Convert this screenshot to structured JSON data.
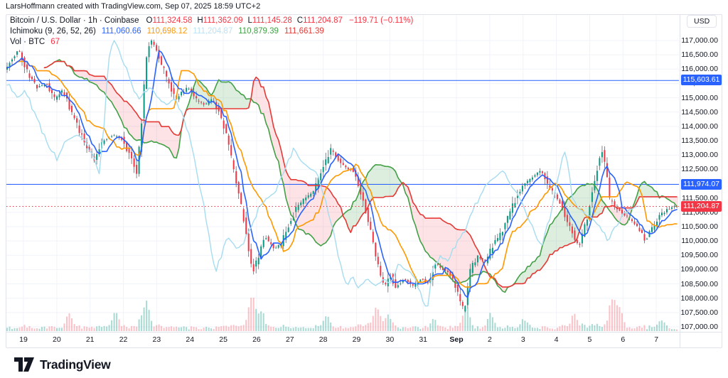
{
  "attribution": "LarsHoffmann created with TradingView.com, Sep 07, 2025 18:59 UTC+2",
  "legend": {
    "symbol_title": "Bitcoin / U.S. Dollar · 1h · Coinbase",
    "ohlc_color": "#F23645",
    "ohlc": [
      {
        "label": "O",
        "value": "111,324.58"
      },
      {
        "label": "H",
        "value": "111,362.09"
      },
      {
        "label": "L",
        "value": "111,145.28"
      },
      {
        "label": "C",
        "value": "111,204.87"
      }
    ],
    "change": "−119.71 (−0.11%)",
    "indicator": {
      "name": "Ichimoku (9, 26, 52, 26)",
      "values": [
        {
          "name": "conversion",
          "value": "111,060.66",
          "color": "#2962FF"
        },
        {
          "name": "base",
          "value": "110,698.12",
          "color": "#FF9800"
        },
        {
          "name": "lagging",
          "value": "111,204.87",
          "color": "#B9E2F4"
        },
        {
          "name": "lead-a",
          "value": "110,879.39",
          "color": "#43A047"
        },
        {
          "name": "lead-b",
          "value": "111,661.39",
          "color": "#E53935"
        }
      ]
    },
    "volume": {
      "name": "Vol · BTC",
      "value": "67",
      "color": "#F23645"
    }
  },
  "price_scale": {
    "currency_button": "USD",
    "ticks": [
      {
        "t": "117,000.00",
        "p": 117000
      },
      {
        "t": "116,500.00",
        "p": 116500
      },
      {
        "t": "116,000.00",
        "p": 116000
      },
      {
        "t": "115,500.00",
        "p": 115500
      },
      {
        "t": "115,000.00",
        "p": 115000
      },
      {
        "t": "114,500.00",
        "p": 114500
      },
      {
        "t": "114,000.00",
        "p": 114000
      },
      {
        "t": "113,500.00",
        "p": 113500
      },
      {
        "t": "113,000.00",
        "p": 113000
      },
      {
        "t": "112,500.00",
        "p": 112500
      },
      {
        "t": "112,000.00",
        "p": 112000
      },
      {
        "t": "111,500.00",
        "p": 111500
      },
      {
        "t": "111,000.00",
        "p": 111000
      },
      {
        "t": "110,500.00",
        "p": 110500
      },
      {
        "t": "110,000.00",
        "p": 110000
      },
      {
        "t": "109,500.00",
        "p": 109500
      },
      {
        "t": "109,000.00",
        "p": 109000
      },
      {
        "t": "108,500.00",
        "p": 108500
      },
      {
        "t": "108,000.00",
        "p": 108000
      },
      {
        "t": "107,500.00",
        "p": 107500
      },
      {
        "t": "107,000.00",
        "p": 107000
      }
    ],
    "labels": [
      {
        "text": "115,603.61",
        "price": 115603.61,
        "bg": "#2962FF"
      },
      {
        "text": "111,974.07",
        "price": 111974.07,
        "bg": "#2962FF"
      },
      {
        "text": "111,204.87",
        "price": 111204.87,
        "bg": "#F23645"
      }
    ]
  },
  "time_scale": {
    "ticks": [
      {
        "t": "19"
      },
      {
        "t": "20"
      },
      {
        "t": "21"
      },
      {
        "t": "22"
      },
      {
        "t": "23"
      },
      {
        "t": "24"
      },
      {
        "t": "25"
      },
      {
        "t": "26"
      },
      {
        "t": "27"
      },
      {
        "t": "28"
      },
      {
        "t": "29"
      },
      {
        "t": "30"
      },
      {
        "t": "31"
      },
      {
        "t": "Sep",
        "bold": true
      },
      {
        "t": "2"
      },
      {
        "t": "3"
      },
      {
        "t": "4"
      },
      {
        "t": "5"
      },
      {
        "t": "6"
      },
      {
        "t": "7"
      }
    ]
  },
  "logo": {
    "text": "TradingView"
  },
  "chart_data": {
    "type": "candlestick",
    "symbol": "Bitcoin / U.S. Dollar",
    "interval": "1h",
    "exchange": "Coinbase",
    "indicator": "Ichimoku",
    "ichimoku_params": [
      9,
      26,
      52,
      26
    ],
    "ichimoku_values": {
      "conversion": 111060.66,
      "base": 110698.12,
      "lagging": 111204.87,
      "lead_a": 110879.39,
      "lead_b": 111661.39
    },
    "ohlc": {
      "open": 111324.58,
      "high": 111362.09,
      "low": 111145.28,
      "close": 111204.87,
      "change": -119.71,
      "change_pct": -0.11
    },
    "last_price": 111204.87,
    "horizontal_lines": [
      115603.61,
      111974.07
    ],
    "y_axis": {
      "min": 107000,
      "max": 117000,
      "tick_step": 500
    },
    "x_axis_days": [
      "19",
      "20",
      "21",
      "22",
      "23",
      "24",
      "25",
      "26",
      "27",
      "28",
      "29",
      "30",
      "31",
      "Sep",
      "2",
      "3",
      "4",
      "5",
      "6",
      "7"
    ],
    "observed_high": 117370,
    "observed_low": 107300,
    "price_path": [
      [
        8,
        115900
      ],
      [
        18,
        116250
      ],
      [
        30,
        116700
      ],
      [
        42,
        115900
      ],
      [
        55,
        115350
      ],
      [
        68,
        115500
      ],
      [
        80,
        114950
      ],
      [
        92,
        115250
      ],
      [
        103,
        114550
      ],
      [
        115,
        113850
      ],
      [
        127,
        113250
      ],
      [
        136,
        112850
      ],
      [
        148,
        113500
      ],
      [
        162,
        113700
      ],
      [
        175,
        113550
      ],
      [
        188,
        112900
      ],
      [
        196,
        112350
      ],
      [
        203,
        114300
      ],
      [
        209,
        116400
      ],
      [
        215,
        117000
      ],
      [
        222,
        116800
      ],
      [
        230,
        116200
      ],
      [
        240,
        115600
      ],
      [
        250,
        114950
      ],
      [
        258,
        115150
      ],
      [
        268,
        115350
      ],
      [
        280,
        114900
      ],
      [
        292,
        114750
      ],
      [
        302,
        114950
      ],
      [
        312,
        114500
      ],
      [
        322,
        113700
      ],
      [
        332,
        112500
      ],
      [
        342,
        111300
      ],
      [
        352,
        109900
      ],
      [
        359,
        108950
      ],
      [
        366,
        109400
      ],
      [
        376,
        110150
      ],
      [
        388,
        109750
      ],
      [
        398,
        109850
      ],
      [
        408,
        110450
      ],
      [
        420,
        111150
      ],
      [
        432,
        111500
      ],
      [
        444,
        111700
      ],
      [
        456,
        112400
      ],
      [
        468,
        113200
      ],
      [
        478,
        112900
      ],
      [
        488,
        112550
      ],
      [
        500,
        112450
      ],
      [
        512,
        111600
      ],
      [
        522,
        110700
      ],
      [
        532,
        109400
      ],
      [
        544,
        108350
      ],
      [
        552,
        108800
      ],
      [
        560,
        108350
      ],
      [
        572,
        108700
      ],
      [
        584,
        108400
      ],
      [
        596,
        108700
      ],
      [
        606,
        108500
      ],
      [
        616,
        109200
      ],
      [
        628,
        109000
      ],
      [
        638,
        108800
      ],
      [
        648,
        108100
      ],
      [
        656,
        107500
      ],
      [
        666,
        109100
      ],
      [
        676,
        109450
      ],
      [
        686,
        109300
      ],
      [
        698,
        109900
      ],
      [
        710,
        110350
      ],
      [
        722,
        111100
      ],
      [
        736,
        111850
      ],
      [
        750,
        112200
      ],
      [
        764,
        112450
      ],
      [
        778,
        111800
      ],
      [
        792,
        111300
      ],
      [
        806,
        110400
      ],
      [
        818,
        109750
      ],
      [
        830,
        110900
      ],
      [
        842,
        112400
      ],
      [
        850,
        113200
      ],
      [
        856,
        112500
      ],
      [
        860,
        111500
      ],
      [
        868,
        111200
      ],
      [
        880,
        110950
      ],
      [
        892,
        110700
      ],
      [
        904,
        110350
      ],
      [
        912,
        110000
      ],
      [
        922,
        110500
      ],
      [
        934,
        110950
      ],
      [
        946,
        111150
      ],
      [
        953,
        111205
      ]
    ],
    "volume_spikes": [
      [
        97,
        16
      ],
      [
        162,
        24
      ],
      [
        207,
        28
      ],
      [
        355,
        45
      ],
      [
        368,
        20
      ],
      [
        460,
        15
      ],
      [
        530,
        24
      ],
      [
        545,
        18
      ],
      [
        610,
        12
      ],
      [
        655,
        24
      ],
      [
        690,
        16
      ],
      [
        737,
        12
      ],
      [
        808,
        18
      ],
      [
        862,
        40
      ],
      [
        872,
        24
      ],
      [
        930,
        10
      ]
    ]
  },
  "style": {
    "up": "#089981",
    "down": "#F23645",
    "wick": "#61656e",
    "tenkan": "#2962FF",
    "kijun": "#FF9800",
    "chikou": "#A6DCEF",
    "lead_a": "#43A047",
    "lead_b": "#E53935",
    "cloud_green": "rgba(67,160,71,0.18)",
    "cloud_red": "rgba(242,54,69,0.14)",
    "grid": "#f0f3fa",
    "line_blue": "#2962FF",
    "line_red": "#F23645",
    "vol_up": "rgba(8,153,129,0.35)",
    "vol_down": "rgba(242,54,69,0.30)",
    "text": "#131722",
    "border": "#e0e3eb"
  }
}
